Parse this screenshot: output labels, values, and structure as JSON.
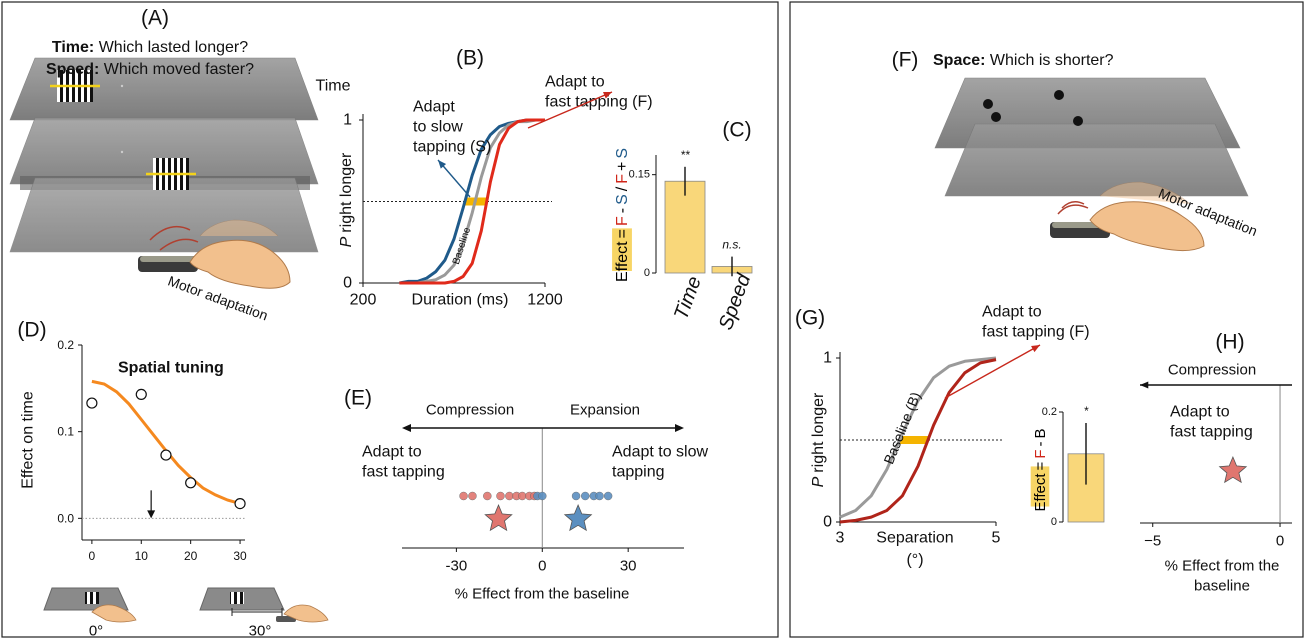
{
  "illustrations": [
    {
      "label": "(A)",
      "lines": [
        {
          "bold": "Time:",
          "text": "Which lasted longer?"
        },
        {
          "bold": "Speed:",
          "text": "Which moved faster?"
        }
      ],
      "caption": "Motor adaptation"
    },
    {
      "label": "(F)",
      "lines": [
        {
          "bold": "Space:",
          "text": "Which is shorter?"
        }
      ],
      "caption": "Motor adaptation"
    }
  ],
  "chart_data": [
    {
      "type": "line",
      "label": "(B)",
      "title": "Time",
      "ylabel": [
        "P",
        "right longer"
      ],
      "xlabel": [
        "Duration (ms)"
      ],
      "x": [
        400,
        450,
        500,
        550,
        600,
        650,
        700,
        750,
        800,
        850,
        900,
        950,
        1000,
        1050,
        1100,
        1150,
        1200
      ],
      "series": [
        {
          "color": "#1f5a8a",
          "values": [
            0.0,
            0.01,
            0.01,
            0.03,
            0.07,
            0.14,
            0.27,
            0.46,
            0.66,
            0.82,
            0.91,
            0.96,
            0.98,
            0.99,
            1.0,
            1.0,
            1.0
          ]
        },
        {
          "color": "#9a9a9a",
          "values": [
            0.0,
            0.0,
            0.0,
            0.01,
            0.02,
            0.05,
            0.11,
            0.24,
            0.43,
            0.65,
            0.83,
            0.92,
            0.97,
            0.99,
            0.99,
            1.0,
            1.0
          ]
        },
        {
          "color": "#e02a1b",
          "values": [
            0.0,
            0.0,
            0.0,
            0.0,
            0.0,
            0.0,
            0.01,
            0.04,
            0.12,
            0.32,
            0.62,
            0.85,
            0.95,
            0.99,
            1.0,
            1.0,
            1.0
          ]
        }
      ],
      "xlim": [
        200,
        1200
      ],
      "xticks": [
        200,
        1200
      ],
      "ylim": [
        0,
        1
      ],
      "yticks": [
        0,
        1
      ],
      "reference_y": 0.5,
      "annotations": [
        {
          "lines": [
            "Adapt",
            "to slow",
            "tapping (S)"
          ],
          "color": "#1f5a8a"
        },
        {
          "lines": [
            "Adapt to",
            "fast tapping (F)"
          ],
          "color": "#c8281c"
        },
        {
          "lines": [
            "Baseline"
          ],
          "color": "#333333"
        }
      ]
    },
    {
      "type": "bar",
      "label": "(C)",
      "ylabel": [
        {
          "text": "Effect",
          "color": "#000000"
        },
        {
          "text": "=",
          "color": "#000000"
        },
        {
          "text": "F",
          "color": "#d0261a"
        },
        {
          "text": "-",
          "color": "#000000"
        },
        {
          "text": "S",
          "color": "#1f5a8a"
        },
        {
          "text": "/",
          "color": "#000000"
        },
        {
          "text": "F",
          "color": "#d0261a"
        },
        {
          "text": "+",
          "color": "#000000"
        },
        {
          "text": "S",
          "color": "#1f5a8a"
        }
      ],
      "categories": [
        "Time",
        "Speed"
      ],
      "values": [
        0.14,
        0.01
      ],
      "errors": [
        0.022,
        0.015
      ],
      "significance": [
        "**",
        "n.s."
      ],
      "color": "#f9d77a",
      "ylim": [
        0,
        0.18
      ],
      "yticks": [
        0,
        0.15
      ]
    },
    {
      "type": "scatter",
      "label": "(D)",
      "title": "Spatial tuning",
      "ylabel": "Effect on time",
      "x": [
        0,
        10,
        15,
        20,
        30
      ],
      "values": [
        0.133,
        0.143,
        0.073,
        0.041,
        0.017
      ],
      "fit": {
        "color": "#f5891f",
        "x": [
          0,
          2.5,
          5,
          7.5,
          10,
          12.5,
          15,
          17.5,
          20,
          22.5,
          25,
          27.5,
          30
        ],
        "values": [
          0.158,
          0.155,
          0.146,
          0.132,
          0.114,
          0.096,
          0.078,
          0.061,
          0.047,
          0.035,
          0.027,
          0.021,
          0.017
        ]
      },
      "xlim": [
        -2,
        31
      ],
      "xticks": [
        0,
        10,
        20,
        30
      ],
      "ylim": [
        -0.025,
        0.2
      ],
      "yticks": [
        {
          "value": 0,
          "label": "0.0"
        },
        0.1,
        0.2
      ],
      "reference_y": 0,
      "arrow_x": 12,
      "insets": [
        "0°",
        "30°"
      ]
    },
    {
      "type": "strip",
      "label": "(E)",
      "directions": [
        "Compression",
        "Expansion"
      ],
      "xlabel": [
        "% Effect from the baseline"
      ],
      "xlim": [
        -49,
        49.5
      ],
      "xticks": [
        -30,
        0,
        30
      ],
      "series": [
        {
          "name": [
            "Adapt to",
            "fast tapping"
          ],
          "color": "#e0766f",
          "values": [
            -27.5,
            -24.4,
            -19.2,
            -14.6,
            -11.5,
            -9,
            -7,
            -4.5,
            -2.8
          ],
          "mean": -15.3
        },
        {
          "name": [
            "Adapt to slow",
            "tapping"
          ],
          "color": "#5b8fc0",
          "values": [
            -1.7,
            0,
            11.8,
            15,
            18,
            20,
            23
          ],
          "mean": 12.5
        }
      ]
    },
    {
      "type": "line",
      "label": "(G)",
      "ylabel": [
        "P",
        "right longer"
      ],
      "xlabel": [
        "Separation",
        "(°)"
      ],
      "x": [
        3.0,
        3.2,
        3.4,
        3.6,
        3.8,
        4.0,
        4.2,
        4.4,
        4.6,
        4.8,
        5.0
      ],
      "series": [
        {
          "color": "#9a9a9a",
          "values": [
            0.03,
            0.07,
            0.16,
            0.32,
            0.54,
            0.74,
            0.88,
            0.95,
            0.98,
            0.99,
            1.0
          ]
        },
        {
          "color": "#b0241a",
          "values": [
            0.0,
            0.01,
            0.03,
            0.07,
            0.16,
            0.34,
            0.59,
            0.79,
            0.91,
            0.97,
            0.99
          ]
        }
      ],
      "xlim": [
        3,
        5
      ],
      "xticks": [
        3,
        5
      ],
      "ylim": [
        0,
        1
      ],
      "yticks": [
        0,
        1
      ],
      "reference_y": 0.5,
      "annotations": [
        {
          "lines": [
            "Adapt to",
            "fast tapping (F)"
          ],
          "color": "#c8281c"
        },
        {
          "lines": [
            "Baseline (B)"
          ],
          "color": "#333333"
        }
      ]
    },
    {
      "type": "bar",
      "ylabel": [
        {
          "text": "Effect",
          "color": "#000000"
        },
        {
          "text": "=",
          "color": "#000000"
        },
        {
          "text": "F",
          "color": "#d0261a"
        },
        {
          "text": "-",
          "color": "#000000"
        },
        {
          "text": "B",
          "color": "#000000"
        }
      ],
      "categories": [
        null
      ],
      "values": [
        0.124
      ],
      "errors": [
        0.056
      ],
      "significance": [
        "*"
      ],
      "color": "#f9d77a",
      "ylim": [
        0,
        0.2
      ],
      "yticks": [
        0,
        0.2
      ]
    },
    {
      "type": "strip",
      "label": "(H)",
      "directions": [
        "Compression"
      ],
      "xlabel": [
        "% Effect from the",
        "baseline"
      ],
      "xlim": [
        -5.5,
        0.47
      ],
      "xticks": [
        {
          "value": -5,
          "label": "−5"
        },
        0
      ],
      "series": [
        {
          "name": [
            "Adapt to",
            "fast tapping"
          ],
          "color": "#e0766f",
          "values": [],
          "mean": -1.85
        }
      ]
    }
  ]
}
